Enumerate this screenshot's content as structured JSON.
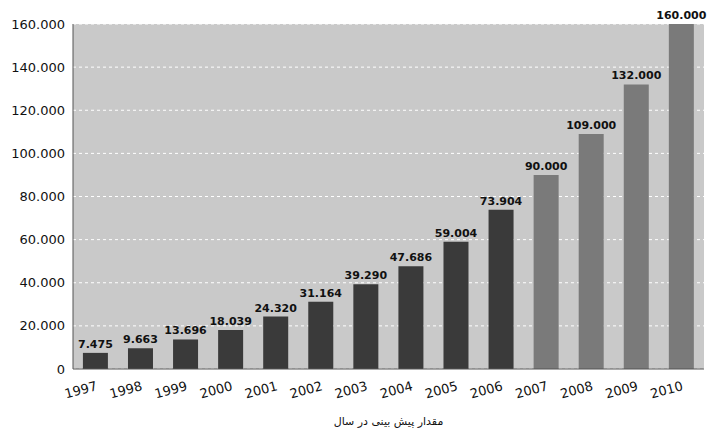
{
  "chart_data": {
    "type": "bar",
    "categories": [
      "1997",
      "1998",
      "1999",
      "2000",
      "2001",
      "2002",
      "2003",
      "2004",
      "2005",
      "2006",
      "2007",
      "2008",
      "2009",
      "2010"
    ],
    "values": [
      7475,
      9663,
      13696,
      18039,
      24320,
      31164,
      39290,
      47686,
      59004,
      73904,
      90000,
      109000,
      132000,
      160000
    ],
    "value_labels": [
      "7.475",
      "9.663",
      "13.696",
      "18.039",
      "24.320",
      "31.164",
      "39.290",
      "47.686",
      "59.004",
      "73.904",
      "90.000",
      "109.000",
      "132.000",
      "160.000"
    ],
    "colors": [
      "#3a3a3a",
      "#3a3a3a",
      "#3a3a3a",
      "#3a3a3a",
      "#3a3a3a",
      "#3a3a3a",
      "#3a3a3a",
      "#3a3a3a",
      "#3a3a3a",
      "#3a3a3a",
      "#7a7a7a",
      "#7a7a7a",
      "#7a7a7a",
      "#7a7a7a"
    ],
    "xlabel": "مقدار پیش بینی در سال",
    "ylim": [
      0,
      160000
    ],
    "yticks": [
      0,
      {
        "value": 20000,
        "label": "20.000"
      },
      {
        "value": 40000,
        "label": "40.000"
      },
      {
        "value": 60000,
        "label": "60.000"
      },
      {
        "value": 80000,
        "label": "80.000"
      },
      {
        "value": 100000,
        "label": "100.000"
      },
      {
        "value": 120000,
        "label": "120.000"
      },
      {
        "value": 140000,
        "label": "140.000"
      },
      {
        "value": 160000,
        "label": "160.000"
      }
    ],
    "grid": true,
    "data_labels": true
  }
}
